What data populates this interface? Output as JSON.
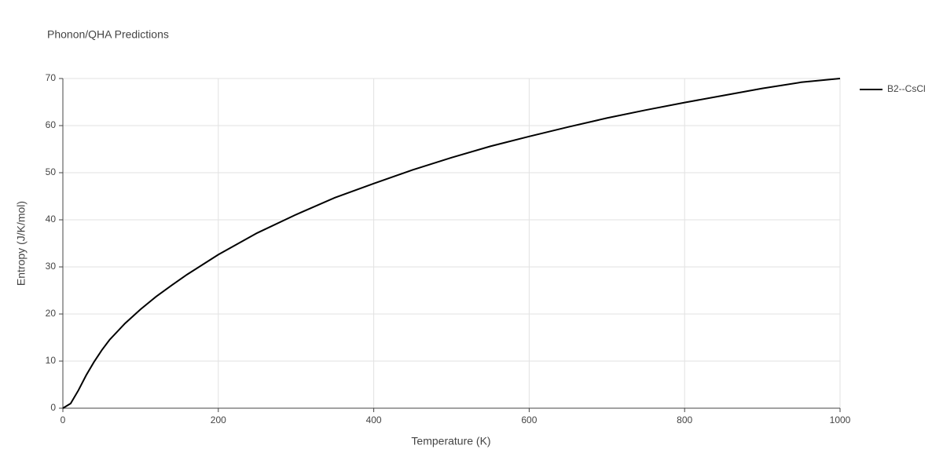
{
  "chart_data": {
    "type": "line",
    "title": "Phonon/QHA Predictions",
    "x_label": "Temperature (K)",
    "y_label": "Entropy (J/K/mol)",
    "x": [
      0,
      10,
      20,
      30,
      40,
      50,
      60,
      80,
      100,
      120,
      140,
      160,
      180,
      200,
      250,
      300,
      350,
      400,
      450,
      500,
      550,
      600,
      650,
      700,
      750,
      800,
      850,
      900,
      950,
      1000
    ],
    "series": [
      {
        "name": "B2--CsCl",
        "color": "#000000",
        "values": [
          0,
          1,
          3.8,
          7,
          9.8,
          12.3,
          14.5,
          18,
          21,
          23.7,
          26.1,
          28.4,
          30.5,
          32.6,
          37.2,
          41.1,
          44.7,
          47.7,
          50.6,
          53.2,
          55.6,
          57.7,
          59.7,
          61.6,
          63.3,
          64.9,
          66.4,
          67.9,
          69.2,
          70
        ]
      }
    ],
    "xlim": [
      0,
      1000
    ],
    "xticks": [
      0,
      200,
      400,
      600,
      800,
      1000
    ],
    "ylim": [
      0,
      70
    ],
    "yticks": [
      0,
      10,
      20,
      30,
      40,
      50,
      60,
      70
    ],
    "grid": true,
    "legend": "right"
  }
}
